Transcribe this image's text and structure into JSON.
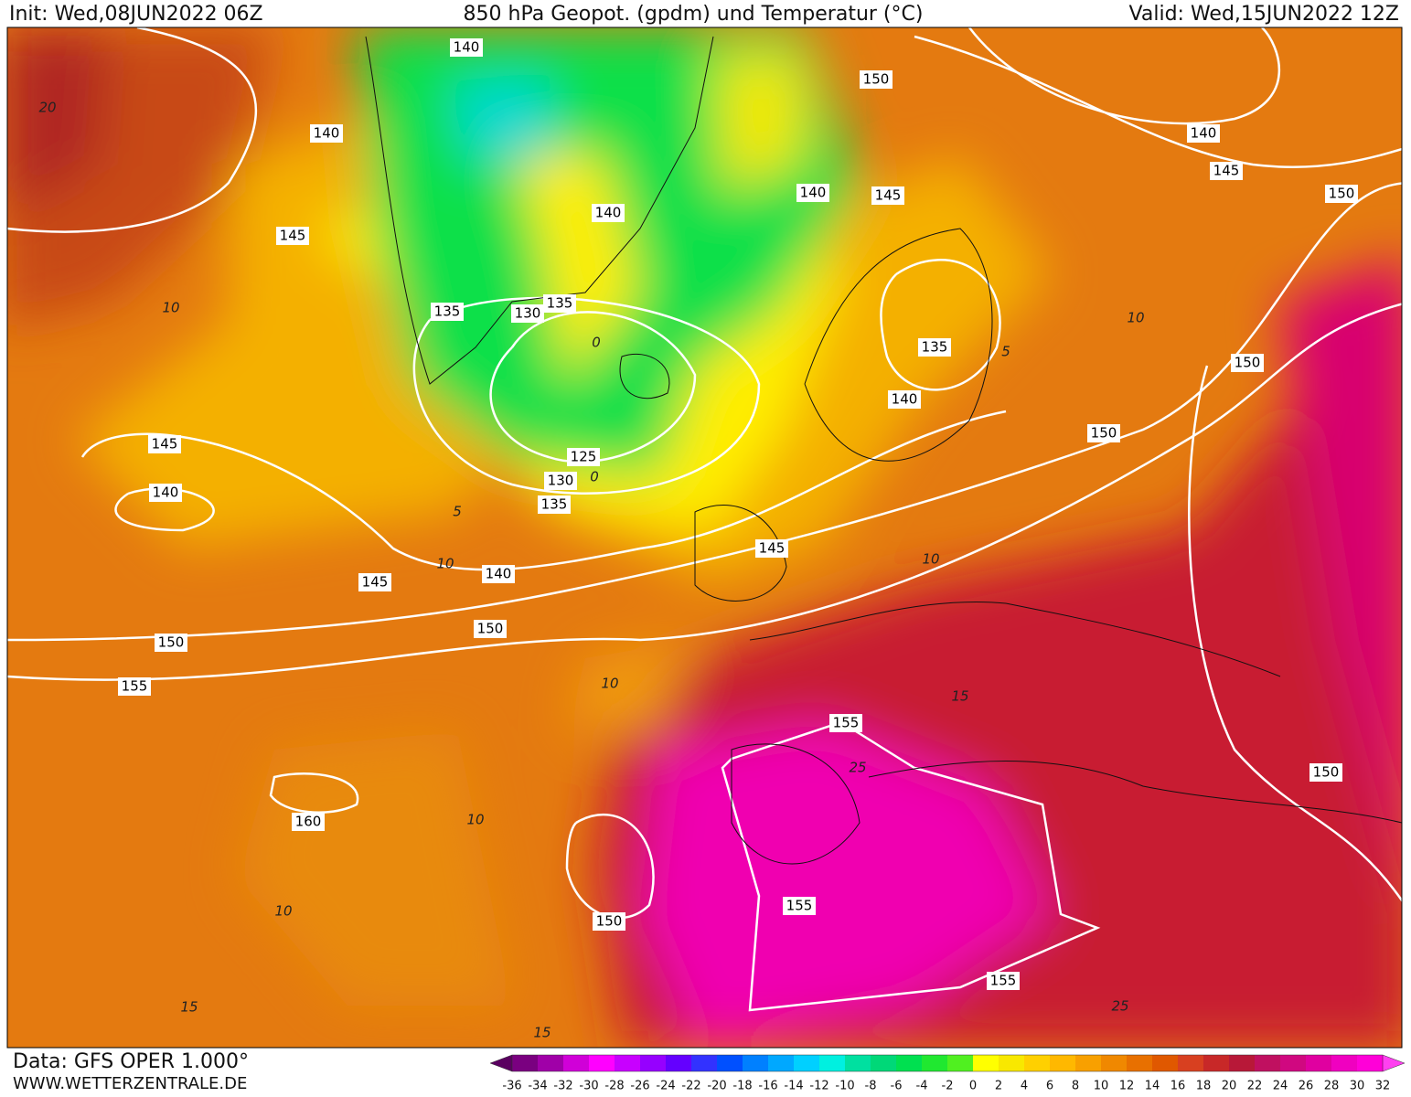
{
  "header": {
    "init": "Init: Wed,08JUN2022 06Z",
    "title": "850 hPa Geopot. (gpdm) und Temperatur (°C)",
    "valid": "Valid: Wed,15JUN2022 12Z"
  },
  "footer": {
    "data": "Data: GFS OPER 1.000°",
    "site": "WWW.WETTERZENTRALE.DE"
  },
  "map": {
    "geopotential_labels": [
      140,
      150,
      140,
      140,
      145,
      140,
      145,
      150,
      140,
      145,
      135,
      130,
      135,
      135,
      150,
      140,
      145,
      150,
      125,
      130,
      135,
      140,
      145,
      140,
      145,
      150,
      150,
      155,
      155,
      150,
      160,
      155,
      150,
      155
    ],
    "temperature_labels": [
      20,
      10,
      10,
      5,
      0,
      0,
      5,
      10,
      10,
      10,
      15,
      25,
      10,
      10,
      15,
      15,
      25
    ]
  },
  "colorbar": {
    "ticks": [
      -36,
      -34,
      -32,
      -30,
      -28,
      -26,
      -24,
      -22,
      -20,
      -18,
      -16,
      -14,
      -12,
      -10,
      -8,
      -6,
      -4,
      -2,
      0,
      2,
      4,
      6,
      8,
      10,
      12,
      14,
      16,
      18,
      20,
      22,
      24,
      26,
      28,
      30,
      32
    ],
    "colors": [
      "#5a0060",
      "#7a0080",
      "#a000a8",
      "#d000d8",
      "#ff00ff",
      "#c800ff",
      "#9600ff",
      "#6400ff",
      "#3232ff",
      "#0050ff",
      "#0080ff",
      "#00a8ff",
      "#00d0ff",
      "#00f0e0",
      "#00e0a0",
      "#00d878",
      "#00e050",
      "#20e830",
      "#50f020",
      "#ffff00",
      "#f8e800",
      "#ffd000",
      "#ffb800",
      "#f8a000",
      "#f08800",
      "#e87000",
      "#e05800",
      "#d84020",
      "#c82828",
      "#b81838",
      "#c01060",
      "#d00880",
      "#e000a0",
      "#f000c0",
      "#ff00d8",
      "#ff40f0"
    ]
  }
}
